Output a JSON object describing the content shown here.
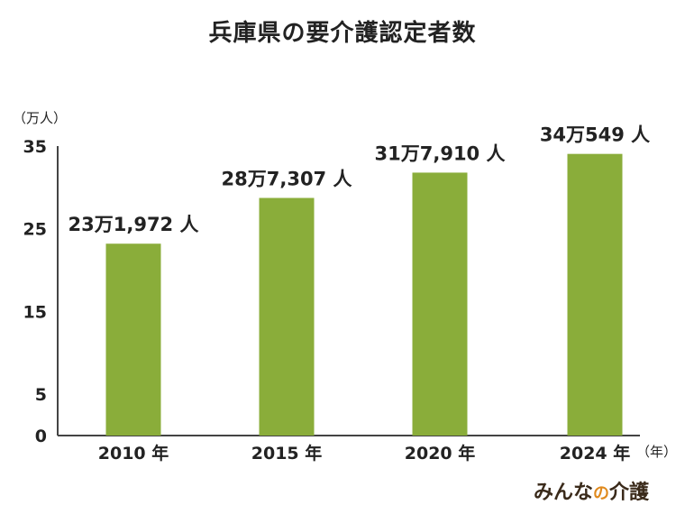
{
  "title": "兵庫県の要介護認定者数",
  "y_unit": "（万人）",
  "x_unit": "（年）",
  "brand": {
    "part1": "みんな",
    "part2": "の",
    "part3": "介護"
  },
  "colors": {
    "bar": "#8aad3a",
    "axis": "#444444"
  },
  "chart_data": {
    "type": "bar",
    "title": "兵庫県の要介護認定者数",
    "categories": [
      "2010 年",
      "2015 年",
      "2020 年",
      "2024 年"
    ],
    "values": [
      23.1972,
      28.7307,
      31.791,
      34.0549
    ],
    "data_labels": [
      "23万1,972 人",
      "28万7,307 人",
      "31万7,910 人",
      "34万549 人"
    ],
    "yticks": [
      0,
      5,
      15,
      25,
      35
    ],
    "ylim": [
      0,
      35
    ],
    "ylabel": "（万人）",
    "xlabel": "（年）",
    "grid": false,
    "legend": "none"
  }
}
